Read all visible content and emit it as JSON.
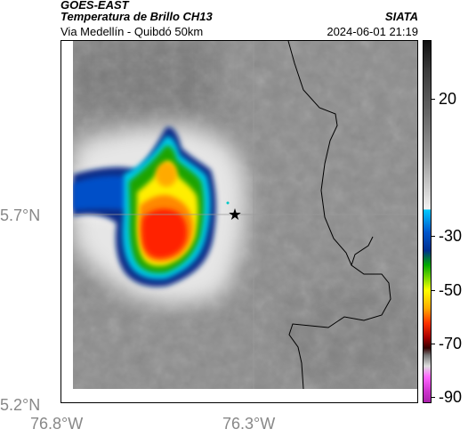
{
  "header": {
    "satellite": "GOES-EAST",
    "product": "Temperatura de Brillo CH13",
    "route": "Via Medellín - Quibdó 50km",
    "agency": "SIATA",
    "datetime": "2024-06-01 21:19"
  },
  "axes": {
    "y_ticks": [
      "5.7°N",
      "5.2°N"
    ],
    "x_ticks": [
      "76.8°W",
      "76.3°W"
    ]
  },
  "colorbar": {
    "labels": [
      "20",
      "-30",
      "-50",
      "-70",
      "-90"
    ]
  },
  "marker": {
    "icon": "star-icon"
  },
  "colors": {
    "cold_cloud_core": "#ff2200",
    "background_gray": "#8a8a8a"
  }
}
